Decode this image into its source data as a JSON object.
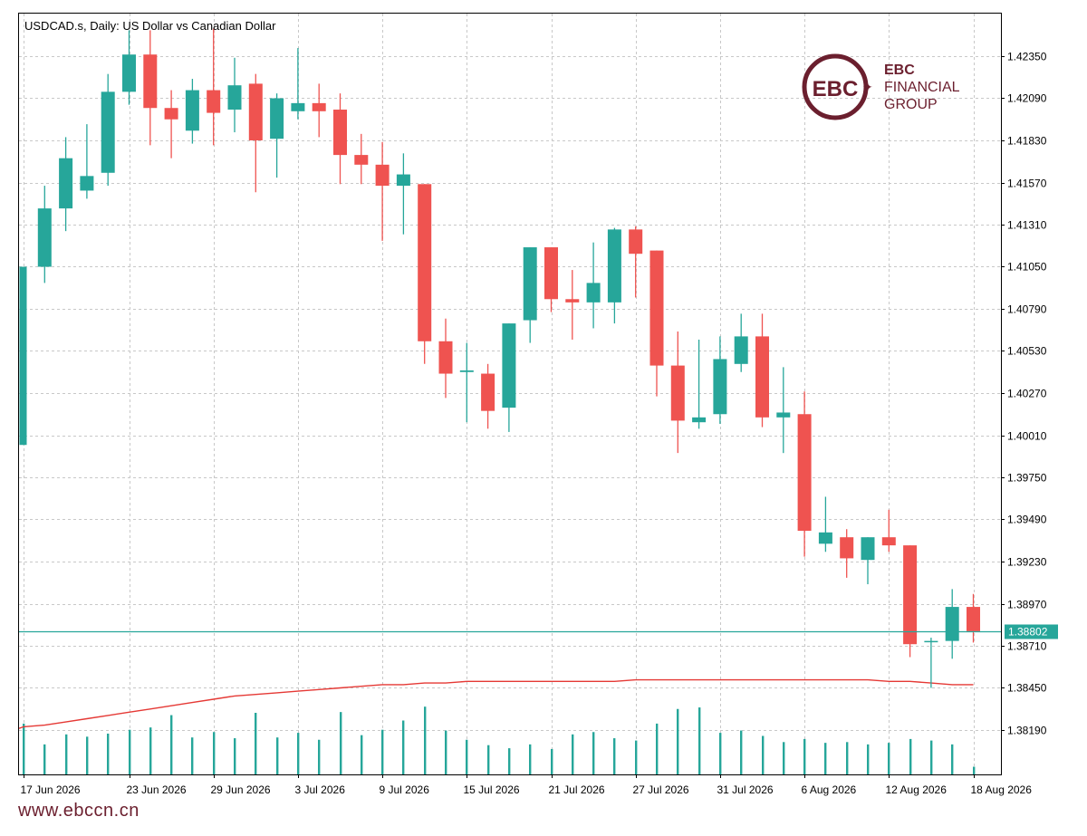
{
  "header": {
    "chart_title": "USDCAD.s, Daily:  US Dollar vs Canadian Dollar"
  },
  "logo": {
    "line1": "EBC",
    "line2": "FINANCIAL",
    "line3": "GROUP",
    "mark": "EBC"
  },
  "footer": {
    "url": "www.ebccn.cn"
  },
  "colors": {
    "bull": "#26a69a",
    "bear": "#ef5350",
    "ma": "#e53935",
    "volume": "#26a69a",
    "price_line": "#26a69a",
    "grid": "#c8c8c8",
    "logo": "#6b1f2e"
  },
  "chart_data": {
    "type": "candlestick",
    "symbol": "USDCAD.s",
    "timeframe": "Daily",
    "y_ticks": [
      "1.42350",
      "1.42090",
      "1.41830",
      "1.41570",
      "1.41310",
      "1.41050",
      "1.40790",
      "1.40530",
      "1.40270",
      "1.40010",
      "1.39750",
      "1.39490",
      "1.39230",
      "1.38970",
      "1.38710",
      "1.38450",
      "1.38190"
    ],
    "ylim": [
      1.3792,
      1.4252
    ],
    "x_tick_labels": [
      "17 Jun 2026",
      "23 Jun 2026",
      "29 Jun 2026",
      "3 Jul 2026",
      "9 Jul 2026",
      "15 Jul 2026",
      "21 Jul 2026",
      "27 Jul 2026",
      "31 Jul 2026",
      "6 Aug 2026",
      "12 Aug 2026",
      "18 Aug 2026"
    ],
    "x_tick_candle_index": [
      0,
      5,
      9,
      13,
      17,
      21,
      25,
      29,
      33,
      37,
      41,
      45
    ],
    "grid": true,
    "current_price": {
      "label": "1.38802",
      "value": 1.38802
    },
    "candles": [
      {
        "o": 1.3995,
        "h": 1.4105,
        "l": 1.3995,
        "c": 1.4105
      },
      {
        "o": 1.4105,
        "h": 1.4155,
        "l": 1.4095,
        "c": 1.4141
      },
      {
        "o": 1.4141,
        "h": 1.4185,
        "l": 1.4127,
        "c": 1.4172
      },
      {
        "o": 1.4152,
        "h": 1.4193,
        "l": 1.4147,
        "c": 1.4161
      },
      {
        "o": 1.4163,
        "h": 1.4224,
        "l": 1.4155,
        "c": 1.4213
      },
      {
        "o": 1.4213,
        "h": 1.4251,
        "l": 1.4205,
        "c": 1.4236
      },
      {
        "o": 1.4236,
        "h": 1.4251,
        "l": 1.418,
        "c": 1.4203
      },
      {
        "o": 1.4203,
        "h": 1.4214,
        "l": 1.4172,
        "c": 1.4196
      },
      {
        "o": 1.4189,
        "h": 1.4221,
        "l": 1.4181,
        "c": 1.4214
      },
      {
        "o": 1.4214,
        "h": 1.4252,
        "l": 1.418,
        "c": 1.42
      },
      {
        "o": 1.4202,
        "h": 1.4234,
        "l": 1.4188,
        "c": 1.4217
      },
      {
        "o": 1.4218,
        "h": 1.4224,
        "l": 1.4151,
        "c": 1.4183
      },
      {
        "o": 1.4184,
        "h": 1.4212,
        "l": 1.416,
        "c": 1.4209
      },
      {
        "o": 1.4201,
        "h": 1.424,
        "l": 1.4196,
        "c": 1.4206
      },
      {
        "o": 1.4206,
        "h": 1.4218,
        "l": 1.4185,
        "c": 1.4201
      },
      {
        "o": 1.4202,
        "h": 1.4212,
        "l": 1.4156,
        "c": 1.4174
      },
      {
        "o": 1.4174,
        "h": 1.4187,
        "l": 1.4156,
        "c": 1.4168
      },
      {
        "o": 1.4168,
        "h": 1.4182,
        "l": 1.4121,
        "c": 1.4155
      },
      {
        "o": 1.4155,
        "h": 1.4175,
        "l": 1.4125,
        "c": 1.4162
      },
      {
        "o": 1.4156,
        "h": 1.4156,
        "l": 1.4045,
        "c": 1.4059
      },
      {
        "o": 1.4059,
        "h": 1.4073,
        "l": 1.4024,
        "c": 1.4039
      },
      {
        "o": 1.404,
        "h": 1.4058,
        "l": 1.4009,
        "c": 1.4041
      },
      {
        "o": 1.4039,
        "h": 1.4045,
        "l": 1.4005,
        "c": 1.4016
      },
      {
        "o": 1.4018,
        "h": 1.407,
        "l": 1.4003,
        "c": 1.407
      },
      {
        "o": 1.4072,
        "h": 1.4117,
        "l": 1.4058,
        "c": 1.4117
      },
      {
        "o": 1.4117,
        "h": 1.4117,
        "l": 1.4077,
        "c": 1.4085
      },
      {
        "o": 1.4085,
        "h": 1.4103,
        "l": 1.406,
        "c": 1.4083
      },
      {
        "o": 1.4083,
        "h": 1.412,
        "l": 1.4067,
        "c": 1.4095
      },
      {
        "o": 1.4083,
        "h": 1.4129,
        "l": 1.407,
        "c": 1.4128
      },
      {
        "o": 1.4128,
        "h": 1.413,
        "l": 1.4086,
        "c": 1.4113
      },
      {
        "o": 1.4115,
        "h": 1.4115,
        "l": 1.4025,
        "c": 1.4044
      },
      {
        "o": 1.4044,
        "h": 1.4065,
        "l": 1.399,
        "c": 1.401
      },
      {
        "o": 1.4009,
        "h": 1.406,
        "l": 1.4005,
        "c": 1.4012
      },
      {
        "o": 1.4014,
        "h": 1.4062,
        "l": 1.4008,
        "c": 1.4048
      },
      {
        "o": 1.4045,
        "h": 1.4076,
        "l": 1.404,
        "c": 1.4062
      },
      {
        "o": 1.4062,
        "h": 1.4076,
        "l": 1.4006,
        "c": 1.4012
      },
      {
        "o": 1.4012,
        "h": 1.4043,
        "l": 1.399,
        "c": 1.4015
      },
      {
        "o": 1.4014,
        "h": 1.4028,
        "l": 1.3926,
        "c": 1.3942
      },
      {
        "o": 1.3934,
        "h": 1.3963,
        "l": 1.3929,
        "c": 1.3941
      },
      {
        "o": 1.3938,
        "h": 1.3943,
        "l": 1.3913,
        "c": 1.3925
      },
      {
        "o": 1.3924,
        "h": 1.3938,
        "l": 1.3909,
        "c": 1.3938
      },
      {
        "o": 1.3938,
        "h": 1.3955,
        "l": 1.3929,
        "c": 1.3933
      },
      {
        "o": 1.3933,
        "h": 1.3933,
        "l": 1.3864,
        "c": 1.3872
      },
      {
        "o": 1.3874,
        "h": 1.3876,
        "l": 1.3845,
        "c": 1.3874
      },
      {
        "o": 1.3874,
        "h": 1.3906,
        "l": 1.3863,
        "c": 1.3895
      },
      {
        "o": 1.3895,
        "h": 1.3903,
        "l": 1.3873,
        "c": 1.388
      }
    ],
    "moving_average": [
      1.3821,
      1.3822,
      1.3824,
      1.3826,
      1.3828,
      1.383,
      1.3832,
      1.3834,
      1.3836,
      1.3838,
      1.384,
      1.3841,
      1.3842,
      1.3843,
      1.3844,
      1.3845,
      1.3846,
      1.3847,
      1.3847,
      1.3848,
      1.3848,
      1.3849,
      1.3849,
      1.3849,
      1.3849,
      1.3849,
      1.3849,
      1.3849,
      1.3849,
      1.385,
      1.385,
      1.385,
      1.385,
      1.385,
      1.385,
      1.385,
      1.385,
      1.385,
      1.385,
      1.385,
      1.385,
      1.3849,
      1.3849,
      1.3848,
      1.3847,
      1.3847
    ],
    "volume_relative": [
      0.66,
      0.39,
      0.52,
      0.49,
      0.53,
      0.58,
      0.61,
      0.77,
      0.48,
      0.55,
      0.47,
      0.8,
      0.48,
      0.54,
      0.45,
      0.81,
      0.51,
      0.58,
      0.7,
      0.88,
      0.57,
      0.45,
      0.38,
      0.34,
      0.39,
      0.33,
      0.52,
      0.55,
      0.47,
      0.44,
      0.66,
      0.85,
      0.87,
      0.54,
      0.57,
      0.5,
      0.42,
      0.46,
      0.41,
      0.42,
      0.39,
      0.41,
      0.46,
      0.44,
      0.39,
      0.1
    ]
  }
}
